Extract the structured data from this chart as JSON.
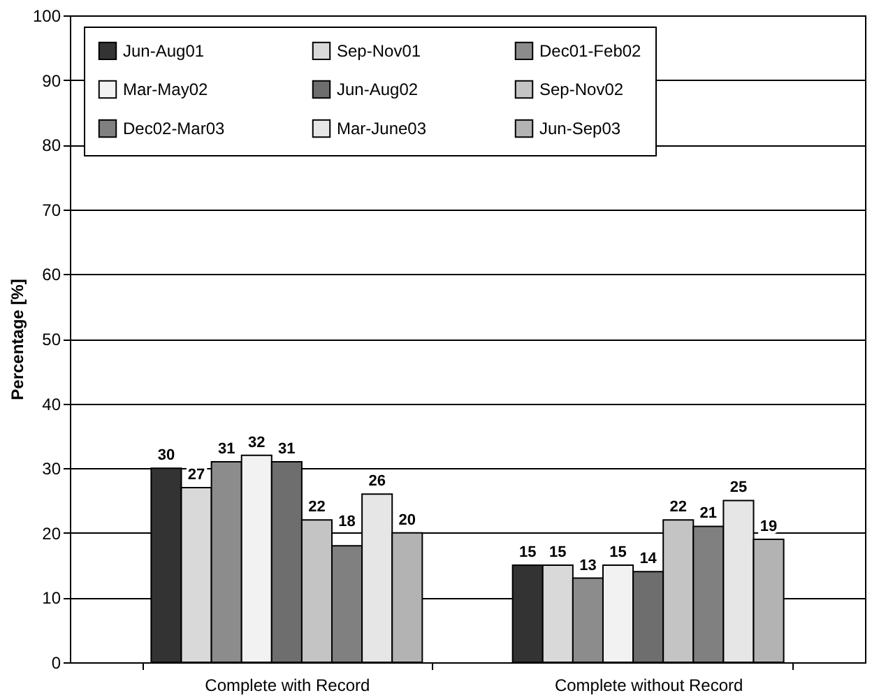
{
  "chart_data": {
    "type": "bar",
    "ylabel": "Percentage [%]",
    "categories": [
      "Complete with Record",
      "Complete without Record"
    ],
    "series": [
      {
        "name": "Jun-Aug01",
        "color": "#333333",
        "values": [
          30,
          15
        ]
      },
      {
        "name": "Sep-Nov01",
        "color": "#d9d9d9",
        "values": [
          27,
          15
        ]
      },
      {
        "name": "Dec01-Feb02",
        "color": "#8c8c8c",
        "values": [
          31,
          13
        ]
      },
      {
        "name": "Mar-May02",
        "color": "#f2f2f2",
        "values": [
          32,
          15
        ]
      },
      {
        "name": "Jun-Aug02",
        "color": "#6e6e6e",
        "values": [
          31,
          14
        ]
      },
      {
        "name": "Sep-Nov02",
        "color": "#c4c4c4",
        "values": [
          22,
          22
        ]
      },
      {
        "name": "Dec02-Mar03",
        "color": "#808080",
        "values": [
          18,
          21
        ]
      },
      {
        "name": "Mar-June03",
        "color": "#e6e6e6",
        "values": [
          26,
          25
        ]
      },
      {
        "name": "Jun-Sep03",
        "color": "#b3b3b3",
        "values": [
          20,
          19
        ]
      }
    ],
    "ylim": [
      0,
      100
    ],
    "yticks": [
      0,
      10,
      20,
      30,
      40,
      50,
      60,
      70,
      80,
      90,
      100
    ],
    "grid": "y",
    "legend": "top",
    "data_labels": true
  }
}
